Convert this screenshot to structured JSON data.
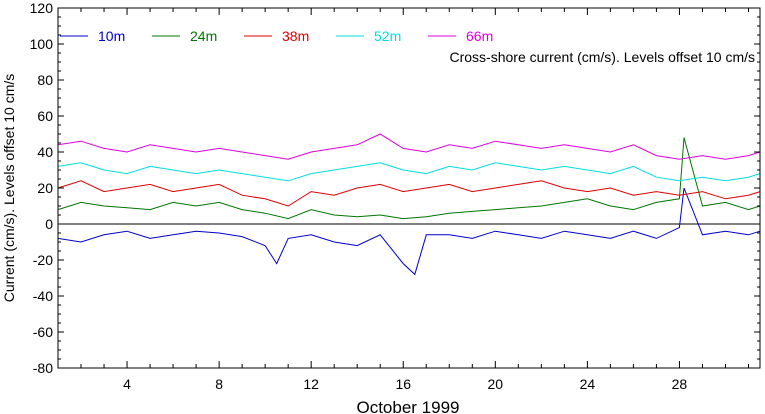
{
  "chart_data": {
    "type": "line",
    "title": "Cross-shore current (cm/s). Levels offset 10 cm/s",
    "xlabel": "October 1999",
    "ylabel": "Current (cm/s). Levels offset 10 cm/s",
    "xlim": [
      1,
      31.5
    ],
    "ylim": [
      -80,
      120
    ],
    "x_ticks": [
      4,
      8,
      12,
      16,
      20,
      24,
      28
    ],
    "y_ticks": [
      -80,
      -60,
      -40,
      -20,
      0,
      20,
      40,
      60,
      80,
      100,
      120
    ],
    "zero_line": true,
    "legend_position": "top-left",
    "series": [
      {
        "name": "10m",
        "color": "#0000cc",
        "x": [
          1,
          2,
          3,
          4,
          5,
          6,
          7,
          8,
          9,
          10,
          10.5,
          11,
          12,
          13,
          14,
          15,
          15.5,
          16,
          16.5,
          17,
          18,
          19,
          20,
          21,
          22,
          23,
          24,
          25,
          26,
          27,
          28,
          28.2,
          29,
          30,
          31,
          31.5
        ],
        "y": [
          -8,
          -10,
          -6,
          -4,
          -8,
          -6,
          -4,
          -5,
          -7,
          -12,
          -22,
          -8,
          -6,
          -10,
          -12,
          -6,
          -14,
          -22,
          -28,
          -6,
          -6,
          -8,
          -4,
          -6,
          -8,
          -4,
          -6,
          -8,
          -4,
          -8,
          -2,
          20,
          -6,
          -4,
          -6,
          -4
        ]
      },
      {
        "name": "24m",
        "color": "#007700",
        "x": [
          1,
          2,
          3,
          4,
          5,
          6,
          7,
          8,
          9,
          10,
          11,
          12,
          13,
          14,
          15,
          16,
          17,
          18,
          19,
          20,
          21,
          22,
          23,
          24,
          25,
          26,
          27,
          28,
          28.2,
          29,
          30,
          31,
          31.5
        ],
        "y": [
          8,
          12,
          10,
          9,
          8,
          12,
          10,
          12,
          8,
          6,
          3,
          8,
          5,
          4,
          5,
          3,
          4,
          6,
          7,
          8,
          9,
          10,
          12,
          14,
          10,
          8,
          12,
          14,
          48,
          10,
          12,
          8,
          10
        ]
      },
      {
        "name": "38m",
        "color": "#dd0000",
        "x": [
          1,
          2,
          3,
          4,
          5,
          6,
          7,
          8,
          9,
          10,
          11,
          12,
          13,
          14,
          15,
          16,
          17,
          18,
          19,
          20,
          21,
          22,
          23,
          24,
          25,
          26,
          27,
          28,
          29,
          30,
          31,
          31.5
        ],
        "y": [
          20,
          24,
          18,
          20,
          22,
          18,
          20,
          22,
          16,
          14,
          10,
          18,
          16,
          20,
          22,
          18,
          20,
          22,
          18,
          20,
          22,
          24,
          20,
          18,
          20,
          16,
          18,
          16,
          18,
          14,
          16,
          18
        ]
      },
      {
        "name": "52m",
        "color": "#00dddd",
        "x": [
          1,
          2,
          3,
          4,
          5,
          6,
          7,
          8,
          9,
          10,
          11,
          12,
          13,
          14,
          15,
          16,
          17,
          18,
          19,
          20,
          21,
          22,
          23,
          24,
          25,
          26,
          27,
          28,
          29,
          30,
          31,
          31.5
        ],
        "y": [
          32,
          34,
          30,
          28,
          32,
          30,
          28,
          30,
          28,
          26,
          24,
          28,
          30,
          32,
          34,
          30,
          28,
          32,
          30,
          34,
          32,
          30,
          32,
          30,
          28,
          32,
          26,
          24,
          26,
          24,
          26,
          28
        ]
      },
      {
        "name": "66m",
        "color": "#dd00dd",
        "x": [
          1,
          2,
          3,
          4,
          5,
          6,
          7,
          8,
          9,
          10,
          11,
          12,
          13,
          14,
          15,
          16,
          17,
          18,
          19,
          20,
          21,
          22,
          23,
          24,
          25,
          26,
          27,
          28,
          29,
          30,
          31,
          31.5
        ],
        "y": [
          44,
          46,
          42,
          40,
          44,
          42,
          40,
          42,
          40,
          38,
          36,
          40,
          42,
          44,
          50,
          42,
          40,
          44,
          42,
          46,
          44,
          42,
          44,
          42,
          40,
          44,
          38,
          36,
          38,
          36,
          38,
          40
        ]
      }
    ]
  }
}
